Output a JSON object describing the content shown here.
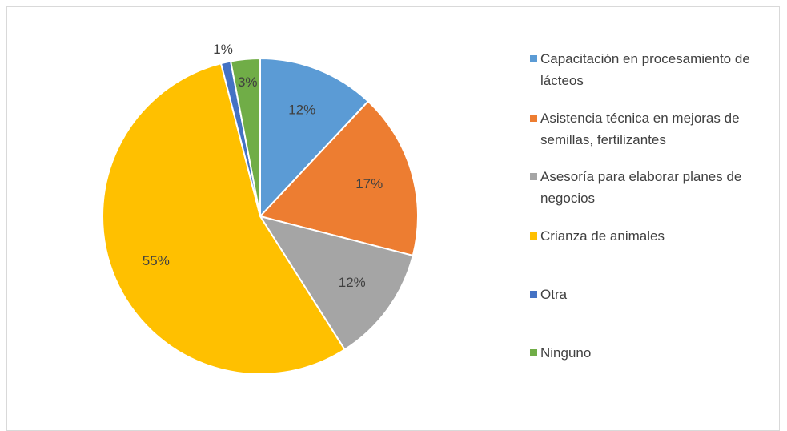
{
  "chart_data": {
    "type": "pie",
    "categories": [
      "Capacitación en procesamiento de lácteos",
      "Asistencia técnica en mejoras de semillas, fertilizantes",
      "Asesoría para elaborar planes de negocios",
      "Crianza de animales",
      "Otra",
      "Ninguno"
    ],
    "values": [
      12,
      17,
      12,
      55,
      1,
      3
    ],
    "value_labels": [
      "12%",
      "17%",
      "12%",
      "55%",
      "1%",
      "3%"
    ],
    "colors": [
      "#5b9bd5",
      "#ed7d31",
      "#a5a5a5",
      "#ffc000",
      "#4472c4",
      "#70ad47"
    ],
    "legend": "right"
  }
}
